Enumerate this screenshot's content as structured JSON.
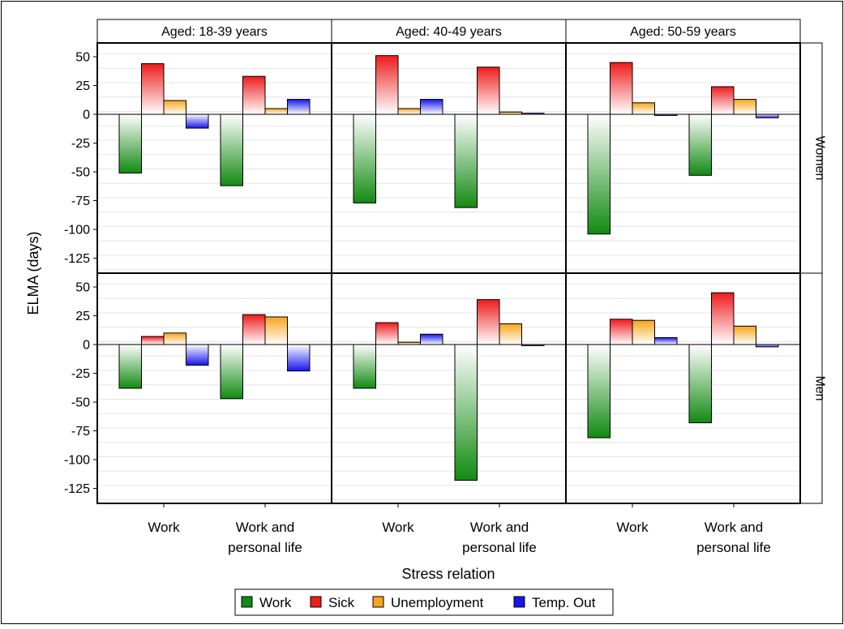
{
  "chart_data": {
    "type": "bar",
    "ylabel": "ELMA (days)",
    "xlabel": "Stress relation",
    "yticks": [
      50,
      25,
      0,
      -25,
      -50,
      -75,
      -100,
      -125
    ],
    "yticks_labels": [
      "50",
      "25",
      "0",
      "-25",
      "-50",
      "-75",
      "-100",
      "-125"
    ],
    "ylim": [
      -138,
      62
    ],
    "grid": true,
    "legend_position": "bottom",
    "col_labels": [
      "Aged: 18-39 years",
      "Aged: 40-49 years",
      "Aged: 50-59 years"
    ],
    "row_labels": [
      "Women",
      "Men"
    ],
    "categories": [
      [
        "Work"
      ],
      [
        "Work and",
        "personal life"
      ]
    ],
    "series_names": [
      "Work",
      "Sick",
      "Unemployment",
      "Temp. Out"
    ],
    "series_colors": [
      "#118a11",
      "#ee1c1c",
      "#f7a51b",
      "#1515ee"
    ],
    "panels": [
      {
        "row": "Women",
        "col": "Aged: 18-39 years",
        "values": [
          [
            -51,
            44,
            12,
            -12
          ],
          [
            -62,
            33,
            5,
            13
          ]
        ]
      },
      {
        "row": "Women",
        "col": "Aged: 40-49 years",
        "values": [
          [
            -77,
            51,
            5,
            13
          ],
          [
            -81,
            41,
            2,
            1
          ]
        ]
      },
      {
        "row": "Women",
        "col": "Aged: 50-59 years",
        "values": [
          [
            -104,
            45,
            10,
            -1
          ],
          [
            -53,
            24,
            13,
            -3
          ]
        ]
      },
      {
        "row": "Men",
        "col": "Aged: 18-39 years",
        "values": [
          [
            -38,
            7,
            10,
            -18
          ],
          [
            -47,
            26,
            24,
            -23
          ]
        ]
      },
      {
        "row": "Men",
        "col": "Aged: 40-49 years",
        "values": [
          [
            -38,
            19,
            2,
            9
          ],
          [
            -118,
            39,
            18,
            -1
          ]
        ]
      },
      {
        "row": "Men",
        "col": "Aged: 50-59 years",
        "values": [
          [
            -81,
            22,
            21,
            6
          ],
          [
            -68,
            45,
            16,
            -2
          ]
        ]
      }
    ]
  }
}
